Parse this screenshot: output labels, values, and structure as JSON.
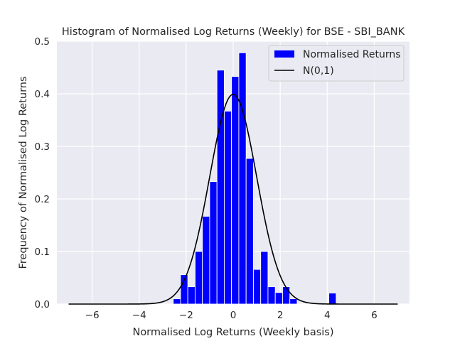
{
  "chart_data": {
    "type": "bar",
    "title": "Histogram of Normalised Log Returns (Weekly) for BSE - SBI_BANK",
    "xlabel": "Normalised Log Returns (Weekly basis)",
    "ylabel": "Frequency of Normalised Log Returns",
    "xlim": [
      -7.5,
      7.5
    ],
    "ylim": [
      0,
      0.5
    ],
    "xticks": [
      -6,
      -4,
      -2,
      0,
      2,
      4,
      6
    ],
    "yticks": [
      0.0,
      0.1,
      0.2,
      0.3,
      0.4,
      0.5
    ],
    "xtick_labels": [
      "−6",
      "−4",
      "−2",
      "0",
      "2",
      "4",
      "6"
    ],
    "ytick_labels": [
      "0.0",
      "0.1",
      "0.2",
      "0.3",
      "0.4",
      "0.5"
    ],
    "bin_width": 0.31,
    "bins": [
      {
        "x": -2.55,
        "h": 0.01
      },
      {
        "x": -2.24,
        "h": 0.056
      },
      {
        "x": -1.93,
        "h": 0.033
      },
      {
        "x": -1.62,
        "h": 0.1
      },
      {
        "x": -1.31,
        "h": 0.167
      },
      {
        "x": -1.0,
        "h": 0.233
      },
      {
        "x": -0.69,
        "h": 0.445
      },
      {
        "x": -0.38,
        "h": 0.367
      },
      {
        "x": -0.07,
        "h": 0.433
      },
      {
        "x": 0.24,
        "h": 0.478
      },
      {
        "x": 0.55,
        "h": 0.277
      },
      {
        "x": 0.86,
        "h": 0.066
      },
      {
        "x": 1.17,
        "h": 0.1
      },
      {
        "x": 1.48,
        "h": 0.033
      },
      {
        "x": 1.79,
        "h": 0.022
      },
      {
        "x": 2.1,
        "h": 0.033
      },
      {
        "x": 2.41,
        "h": 0.01
      },
      {
        "x": 4.07,
        "h": 0.021
      }
    ],
    "normal_curve": {
      "mean": 0,
      "std": 1,
      "x_range": [
        -7,
        7
      ]
    },
    "series": [
      {
        "name": "Normalised Returns",
        "kind": "bar",
        "color": "#0000ff"
      },
      {
        "name": "N(0,1)",
        "kind": "line",
        "color": "#000000"
      }
    ],
    "legend_position": "top-right",
    "grid": true
  }
}
